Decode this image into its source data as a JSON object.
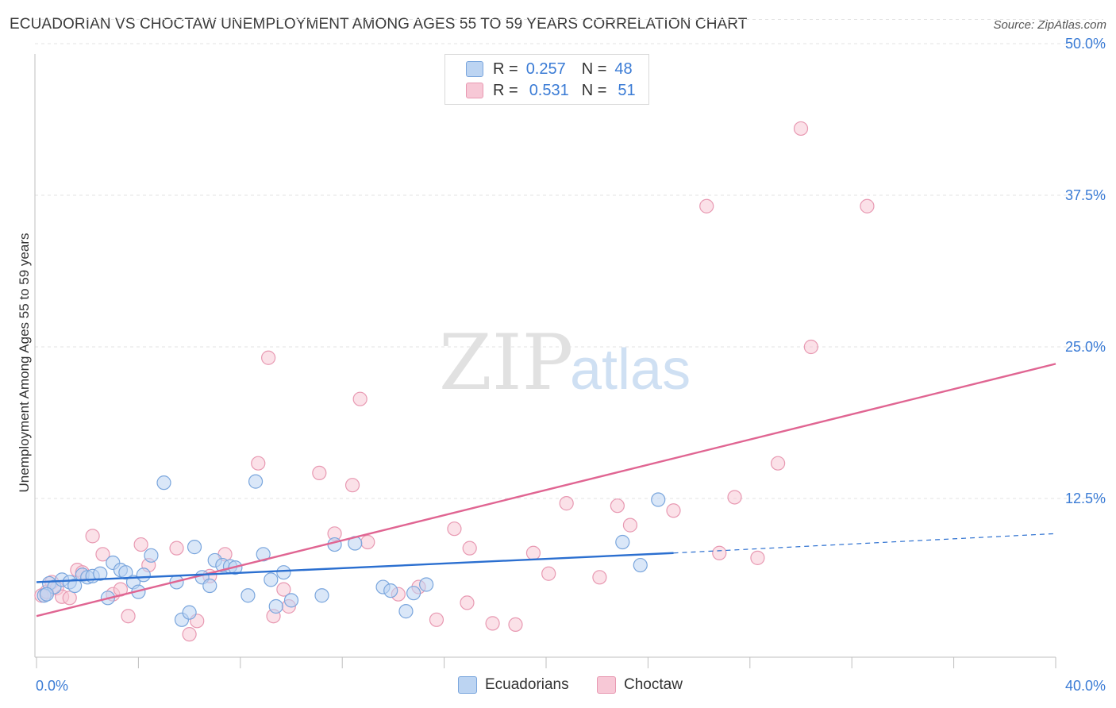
{
  "title": "ECUADORIAN VS CHOCTAW UNEMPLOYMENT AMONG AGES 55 TO 59 YEARS CORRELATION CHART",
  "source": "Source: ZipAtlas.com",
  "watermark": {
    "zip": "ZIP",
    "atlas": "atlas"
  },
  "legend": {
    "r_label": "R =",
    "n_label": "N =",
    "rows": [
      {
        "r": "0.257",
        "n": "48"
      },
      {
        "r": "0.531",
        "n": "51"
      }
    ]
  },
  "colors": {
    "ecuadorians_fill": "#bcd4f2",
    "ecuadorians_stroke": "#7aa6dd",
    "ecuadorians_line": "#2b6fd0",
    "choctaw_fill": "#f7c8d6",
    "choctaw_stroke": "#e899b2",
    "choctaw_line": "#e06592",
    "axis_text": "#3a7bd5"
  },
  "chart_data": {
    "type": "scatter",
    "xlabel": "",
    "ylabel": "Unemployment Among Ages 55 to 59 years",
    "xlim": [
      0,
      40
    ],
    "ylim": [
      0,
      52
    ],
    "x_tick_labels": [
      "0.0%",
      "40.0%"
    ],
    "y_ticks": [
      12.5,
      25.0,
      37.5,
      50.0
    ],
    "y_tick_labels": [
      "12.5%",
      "25.0%",
      "37.5%",
      "50.0%"
    ],
    "grid": true,
    "legend_position": "top-center",
    "series": [
      {
        "name": "Ecuadorians",
        "trend": {
          "x": [
            0,
            25
          ],
          "y": [
            5.6,
            8.0
          ],
          "dashed_to": [
            40,
            9.6
          ]
        },
        "points": [
          [
            0.3,
            4.5
          ],
          [
            0.5,
            5.5
          ],
          [
            0.7,
            5.2
          ],
          [
            1.0,
            5.8
          ],
          [
            1.3,
            5.6
          ],
          [
            1.5,
            5.3
          ],
          [
            1.8,
            6.2
          ],
          [
            2.0,
            6.0
          ],
          [
            2.2,
            6.1
          ],
          [
            2.5,
            6.3
          ],
          [
            2.8,
            4.3
          ],
          [
            3.0,
            7.2
          ],
          [
            3.3,
            6.6
          ],
          [
            3.5,
            6.4
          ],
          [
            3.8,
            5.6
          ],
          [
            4.0,
            4.8
          ],
          [
            4.2,
            6.2
          ],
          [
            4.5,
            7.8
          ],
          [
            5.0,
            13.8
          ],
          [
            5.5,
            5.6
          ],
          [
            5.7,
            2.5
          ],
          [
            6.0,
            3.1
          ],
          [
            6.2,
            8.5
          ],
          [
            6.5,
            6.0
          ],
          [
            6.8,
            5.3
          ],
          [
            7.0,
            7.4
          ],
          [
            7.3,
            7.0
          ],
          [
            7.6,
            6.9
          ],
          [
            7.8,
            6.8
          ],
          [
            8.3,
            4.5
          ],
          [
            8.6,
            13.9
          ],
          [
            8.9,
            7.9
          ],
          [
            9.2,
            5.8
          ],
          [
            9.4,
            3.6
          ],
          [
            9.7,
            6.4
          ],
          [
            10.0,
            4.1
          ],
          [
            11.2,
            4.5
          ],
          [
            11.7,
            8.7
          ],
          [
            12.5,
            8.8
          ],
          [
            13.6,
            5.2
          ],
          [
            13.9,
            4.9
          ],
          [
            14.5,
            3.2
          ],
          [
            14.8,
            4.7
          ],
          [
            15.3,
            5.4
          ],
          [
            23.0,
            8.9
          ],
          [
            23.7,
            7.0
          ],
          [
            24.4,
            12.4
          ],
          [
            0.4,
            4.6
          ]
        ]
      },
      {
        "name": "Choctaw",
        "trend": {
          "x": [
            0,
            40
          ],
          "y": [
            2.8,
            23.6
          ]
        },
        "points": [
          [
            0.2,
            4.5
          ],
          [
            0.4,
            4.8
          ],
          [
            0.6,
            5.6
          ],
          [
            0.8,
            5.1
          ],
          [
            1.0,
            4.4
          ],
          [
            1.3,
            4.3
          ],
          [
            1.6,
            6.6
          ],
          [
            1.8,
            6.4
          ],
          [
            2.2,
            9.4
          ],
          [
            2.6,
            7.9
          ],
          [
            3.0,
            4.6
          ],
          [
            3.3,
            5.0
          ],
          [
            3.6,
            2.8
          ],
          [
            4.1,
            8.7
          ],
          [
            4.4,
            7.0
          ],
          [
            5.5,
            8.4
          ],
          [
            6.0,
            1.3
          ],
          [
            6.3,
            2.4
          ],
          [
            6.8,
            6.1
          ],
          [
            7.4,
            7.9
          ],
          [
            8.7,
            15.4
          ],
          [
            9.1,
            24.1
          ],
          [
            9.3,
            2.8
          ],
          [
            9.7,
            5.0
          ],
          [
            9.9,
            3.6
          ],
          [
            11.1,
            14.6
          ],
          [
            11.7,
            9.6
          ],
          [
            12.4,
            13.6
          ],
          [
            12.7,
            20.7
          ],
          [
            13.0,
            8.9
          ],
          [
            14.2,
            4.6
          ],
          [
            15.0,
            5.2
          ],
          [
            15.7,
            2.5
          ],
          [
            16.4,
            10.0
          ],
          [
            16.9,
            3.9
          ],
          [
            17.0,
            8.4
          ],
          [
            17.9,
            2.2
          ],
          [
            18.8,
            2.1
          ],
          [
            19.5,
            8.0
          ],
          [
            20.1,
            6.3
          ],
          [
            20.8,
            12.1
          ],
          [
            22.1,
            6.0
          ],
          [
            22.8,
            11.9
          ],
          [
            23.3,
            10.3
          ],
          [
            25.0,
            11.5
          ],
          [
            26.3,
            36.6
          ],
          [
            26.8,
            8.0
          ],
          [
            27.4,
            12.6
          ],
          [
            28.3,
            7.6
          ],
          [
            29.1,
            15.4
          ],
          [
            30.0,
            43.0
          ]
        ],
        "extra_points": [
          [
            30.4,
            25.0
          ],
          [
            32.6,
            36.6
          ]
        ]
      }
    ]
  }
}
